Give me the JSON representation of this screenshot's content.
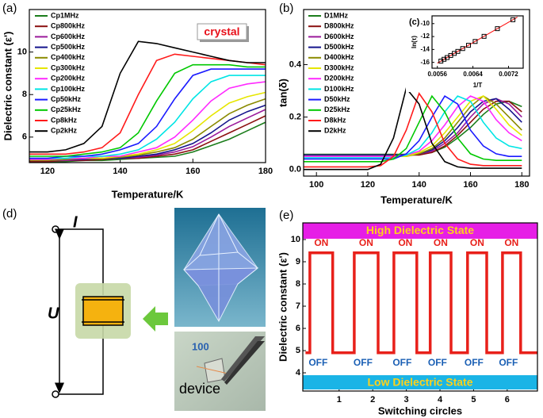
{
  "chart_data": [
    {
      "type": "line",
      "panel_label": "(a)",
      "x_label": "Temperature/K",
      "y_label": "Dielectric constant (ε')",
      "annotation": "crystal",
      "x": [
        115,
        120,
        125,
        130,
        135,
        140,
        145,
        150,
        155,
        160,
        165,
        170,
        175,
        180
      ],
      "xlim": [
        115,
        180
      ],
      "xticks": [
        120,
        140,
        160,
        180
      ],
      "ylim": [
        4.8,
        12
      ],
      "yticks": [
        6,
        8,
        10
      ],
      "series": [
        {
          "name": "Cp1MHz",
          "color": "#1b7d1b",
          "values": [
            4.85,
            4.85,
            4.85,
            4.9,
            4.9,
            4.95,
            5.0,
            5.05,
            5.1,
            5.3,
            5.6,
            5.9,
            6.3,
            6.7
          ]
        },
        {
          "name": "Cp800kHz",
          "color": "#8b1010",
          "values": [
            4.85,
            4.85,
            4.9,
            4.9,
            4.95,
            5.0,
            5.0,
            5.1,
            5.2,
            5.4,
            5.8,
            6.2,
            6.6,
            7.0
          ]
        },
        {
          "name": "Cp600kHz",
          "color": "#9b1a9b",
          "values": [
            4.9,
            4.9,
            4.9,
            4.95,
            5.0,
            5.0,
            5.05,
            5.15,
            5.3,
            5.55,
            6.0,
            6.5,
            6.9,
            7.3
          ]
        },
        {
          "name": "Cp500kHz",
          "color": "#14148c",
          "values": [
            4.9,
            4.9,
            4.95,
            4.95,
            5.0,
            5.0,
            5.1,
            5.2,
            5.4,
            5.7,
            6.2,
            6.8,
            7.2,
            7.5
          ]
        },
        {
          "name": "Cp400kHz",
          "color": "#8a8a00",
          "values": [
            4.9,
            4.9,
            4.95,
            5.0,
            5.0,
            5.05,
            5.15,
            5.3,
            5.5,
            5.9,
            6.5,
            7.1,
            7.5,
            7.8
          ]
        },
        {
          "name": "Cp300kHz",
          "color": "#e6e600",
          "values": [
            4.95,
            4.95,
            5.0,
            5.0,
            5.0,
            5.1,
            5.2,
            5.4,
            5.7,
            6.3,
            7.0,
            7.6,
            7.9,
            8.1
          ]
        },
        {
          "name": "Cp200kHz",
          "color": "#ff2aff",
          "values": [
            4.95,
            4.95,
            5.0,
            5.0,
            5.1,
            5.1,
            5.3,
            5.5,
            6.0,
            6.8,
            7.7,
            8.3,
            8.5,
            8.6
          ]
        },
        {
          "name": "Cp100kHz",
          "color": "#00e5e5",
          "values": [
            5.0,
            5.0,
            5.0,
            5.1,
            5.1,
            5.2,
            5.4,
            5.9,
            6.7,
            7.8,
            8.6,
            8.9,
            8.9,
            8.9
          ]
        },
        {
          "name": "Cp50kHz",
          "color": "#1a1aff",
          "values": [
            5.0,
            5.0,
            5.1,
            5.1,
            5.2,
            5.4,
            5.7,
            6.5,
            7.8,
            8.9,
            9.2,
            9.2,
            9.2,
            9.2
          ]
        },
        {
          "name": "Cp25kHz",
          "color": "#00c800",
          "values": [
            5.1,
            5.1,
            5.1,
            5.2,
            5.3,
            5.5,
            6.2,
            7.7,
            9.0,
            9.4,
            9.4,
            9.4,
            9.3,
            9.3
          ]
        },
        {
          "name": "Cp8kHz",
          "color": "#ff1a1a",
          "values": [
            5.2,
            5.2,
            5.2,
            5.3,
            5.5,
            6.2,
            8.0,
            9.6,
            9.9,
            9.8,
            9.7,
            9.6,
            9.5,
            9.4
          ]
        },
        {
          "name": "Cp2kHz",
          "color": "#000000",
          "values": [
            5.3,
            5.3,
            5.4,
            5.7,
            6.5,
            9.0,
            10.5,
            10.4,
            10.2,
            10.0,
            9.8,
            9.6,
            9.5,
            9.5
          ]
        }
      ]
    },
    {
      "type": "line",
      "panel_label": "(b)",
      "x_label": "Temperature/K",
      "y_label": "tan(δ)",
      "x": [
        95,
        100,
        105,
        110,
        115,
        120,
        125,
        130,
        135,
        140,
        145,
        150,
        155,
        160,
        165,
        170,
        175,
        180
      ],
      "xlim": [
        95,
        183
      ],
      "xticks": [
        100,
        120,
        140,
        160,
        180
      ],
      "ylim": [
        -0.025,
        0.61
      ],
      "yticks": [
        {
          "value": 0,
          "label": "0.0"
        },
        0.2,
        0.4
      ],
      "series": [
        {
          "name": "D1MHz",
          "color": "#1b7d1b",
          "values": [
            0.058,
            0.058,
            0.058,
            0.058,
            0.058,
            0.058,
            0.058,
            0.058,
            0.058,
            0.058,
            0.065,
            0.085,
            0.12,
            0.16,
            0.21,
            0.25,
            0.26,
            0.24
          ]
        },
        {
          "name": "D800kHz",
          "color": "#8b1010",
          "values": [
            0.055,
            0.055,
            0.055,
            0.055,
            0.055,
            0.055,
            0.055,
            0.055,
            0.055,
            0.055,
            0.065,
            0.09,
            0.13,
            0.18,
            0.23,
            0.26,
            0.26,
            0.22
          ]
        },
        {
          "name": "D600kHz",
          "color": "#9b1a9b",
          "values": [
            0.055,
            0.055,
            0.055,
            0.055,
            0.055,
            0.055,
            0.055,
            0.055,
            0.055,
            0.06,
            0.07,
            0.1,
            0.14,
            0.2,
            0.25,
            0.27,
            0.25,
            0.2
          ]
        },
        {
          "name": "D500kHz",
          "color": "#14148c",
          "values": [
            0.055,
            0.055,
            0.055,
            0.055,
            0.055,
            0.055,
            0.055,
            0.055,
            0.055,
            0.06,
            0.075,
            0.11,
            0.16,
            0.22,
            0.26,
            0.27,
            0.23,
            0.18
          ]
        },
        {
          "name": "D400kHz",
          "color": "#8a8a00",
          "values": [
            0.05,
            0.05,
            0.05,
            0.05,
            0.05,
            0.05,
            0.05,
            0.05,
            0.05,
            0.06,
            0.08,
            0.12,
            0.18,
            0.24,
            0.28,
            0.25,
            0.2,
            0.15
          ]
        },
        {
          "name": "D300kHz",
          "color": "#e6e600",
          "values": [
            0.05,
            0.05,
            0.05,
            0.05,
            0.05,
            0.05,
            0.05,
            0.05,
            0.05,
            0.065,
            0.09,
            0.14,
            0.2,
            0.26,
            0.28,
            0.23,
            0.17,
            0.13
          ]
        },
        {
          "name": "D200kHz",
          "color": "#ff2aff",
          "values": [
            0.05,
            0.05,
            0.05,
            0.05,
            0.05,
            0.05,
            0.05,
            0.05,
            0.055,
            0.07,
            0.11,
            0.17,
            0.24,
            0.28,
            0.26,
            0.19,
            0.14,
            0.11
          ]
        },
        {
          "name": "D100kHz",
          "color": "#00e5e5",
          "values": [
            0.045,
            0.045,
            0.045,
            0.045,
            0.045,
            0.045,
            0.045,
            0.045,
            0.055,
            0.08,
            0.14,
            0.22,
            0.28,
            0.26,
            0.18,
            0.12,
            0.09,
            0.08
          ]
        },
        {
          "name": "D50kHz",
          "color": "#1a1aff",
          "values": [
            0.04,
            0.04,
            0.04,
            0.04,
            0.04,
            0.04,
            0.04,
            0.04,
            0.06,
            0.11,
            0.2,
            0.28,
            0.25,
            0.15,
            0.09,
            0.06,
            0.05,
            0.05
          ]
        },
        {
          "name": "D25kHz",
          "color": "#00c800",
          "values": [
            0.03,
            0.03,
            0.03,
            0.03,
            0.03,
            0.03,
            0.03,
            0.04,
            0.08,
            0.18,
            0.28,
            0.22,
            0.12,
            0.06,
            0.04,
            0.035,
            0.035,
            0.035
          ]
        },
        {
          "name": "D8kHz",
          "color": "#ff1a1a",
          "values": [
            0.01,
            0.01,
            0.01,
            0.01,
            0.01,
            0.01,
            0.015,
            0.05,
            0.15,
            0.29,
            0.22,
            0.1,
            0.04,
            0.02,
            0.015,
            0.015,
            0.015,
            0.015
          ]
        },
        {
          "name": "D2kHz",
          "color": "#000000",
          "values": [
            0,
            0,
            0,
            0,
            0,
            0,
            0.02,
            0.12,
            0.31,
            0.25,
            0.1,
            0.03,
            0.01,
            0.005,
            0.005,
            0.005,
            0.005,
            0.005
          ]
        }
      ]
    },
    {
      "type": "scatter",
      "panel_label": "(c)",
      "x_label": "1/T",
      "y_label": "ln(τ)",
      "color": "#000000",
      "x": [
        0.00568,
        0.00575,
        0.00582,
        0.0059,
        0.00598,
        0.00606,
        0.00617,
        0.0063,
        0.00645,
        0.00665,
        0.00695,
        0.0073
      ],
      "values": [
        -15.8,
        -15.52,
        -15.25,
        -14.93,
        -14.61,
        -14.3,
        -13.86,
        -13.35,
        -12.76,
        -11.97,
        -10.78,
        -9.4
      ],
      "fit": {
        "color": "#ff0000",
        "x": [
          0.0056,
          0.0074
        ],
        "values": [
          -16.12,
          -9.0
        ]
      },
      "xlim": [
        0.00548,
        0.00753
      ],
      "xticks": [
        0.0056,
        0.0064,
        0.0072
      ],
      "ylim": [
        -16.9,
        -8.8
      ],
      "yticks": [
        -16,
        -14,
        -12,
        -10
      ]
    },
    {
      "type": "step",
      "panel_label": "(e)",
      "x_label": "Switching circles",
      "y_label": "Dielectric constant (ε')",
      "high_state_label": "High Dielectric State",
      "low_state_label": "Low Dielectric State",
      "on_label": "ON",
      "off_label": "OFF",
      "xlim": [
        -0.08,
        6.9
      ],
      "xticks": [
        1,
        2,
        3,
        4,
        5,
        6
      ],
      "ylim": [
        3.18,
        10.75
      ],
      "yticks": [
        4,
        5,
        6,
        7,
        8,
        9,
        10
      ],
      "series": [
        {
          "color": "#e8201a",
          "x": [
            0,
            0.13,
            0.13,
            0.81,
            0.81,
            1.45,
            1.45,
            2.16,
            2.16,
            2.63,
            2.63,
            3.31,
            3.31,
            3.71,
            3.71,
            4.33,
            4.33,
            4.82,
            4.82,
            5.39,
            5.39,
            5.86,
            5.86,
            6.4,
            6.4,
            6.9
          ],
          "values": [
            4.9,
            4.9,
            9.4,
            9.4,
            4.9,
            4.9,
            9.4,
            9.4,
            4.9,
            4.9,
            9.4,
            9.4,
            4.9,
            4.9,
            9.4,
            9.4,
            4.9,
            4.9,
            9.4,
            9.4,
            4.9,
            4.9,
            9.4,
            9.4,
            4.9,
            4.9
          ]
        }
      ]
    }
  ],
  "device_panel": {
    "panel_label": "(d)",
    "current_label": "I",
    "voltage_label": "U",
    "device_label": "device",
    "orientation_label": "100"
  }
}
